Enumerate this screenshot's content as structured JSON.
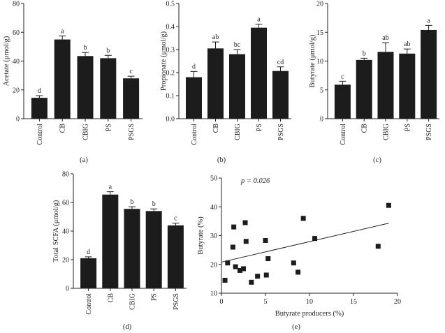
{
  "chart_data": [
    {
      "panel_label": "(a)",
      "type": "bar",
      "ylabel": "Acetate (μmol/g)",
      "ylim": [
        0,
        80
      ],
      "yticks": [
        "0",
        "20",
        "40",
        "60",
        "80"
      ],
      "categories": [
        "Control",
        "CB",
        "CBIG",
        "PS",
        "PSGS"
      ],
      "values": [
        14.5,
        55,
        43.5,
        42,
        28
      ],
      "errors": [
        1.5,
        2.5,
        2.5,
        2,
        1.5
      ],
      "sig_letters": [
        "d",
        "a",
        "b",
        "b",
        "c"
      ]
    },
    {
      "panel_label": "(b)",
      "type": "bar",
      "ylabel": "Propionate (μmol/g)",
      "ylim": [
        0,
        0.5
      ],
      "yticks": [
        "0.0",
        "0.1",
        "0.2",
        "0.3",
        "0.4",
        "0.5"
      ],
      "categories": [
        "Control",
        "CB",
        "CBIG",
        "PS",
        "PSGS"
      ],
      "values": [
        0.18,
        0.305,
        0.28,
        0.395,
        0.207
      ],
      "errors": [
        0.025,
        0.028,
        0.02,
        0.015,
        0.018
      ],
      "sig_letters": [
        "d",
        "ab",
        "bc",
        "a",
        "cd"
      ]
    },
    {
      "panel_label": "(c)",
      "type": "bar",
      "ylabel": "Butyrate (μmol/g)",
      "ylim": [
        0,
        20
      ],
      "yticks": [
        "0",
        "5",
        "10",
        "15",
        "20"
      ],
      "categories": [
        "Control",
        "CB",
        "CBIG",
        "PS",
        "PSGS"
      ],
      "values": [
        5.9,
        10.2,
        11.6,
        11.3,
        15.4
      ],
      "errors": [
        0.6,
        0.3,
        1.6,
        0.8,
        0.8
      ],
      "sig_letters": [
        "c",
        "b",
        "ab",
        "ab",
        "a"
      ]
    },
    {
      "panel_label": "(d)",
      "type": "bar",
      "ylabel": "Total SCFA (μmol/g)",
      "ylim": [
        0,
        80
      ],
      "yticks": [
        "0",
        "20",
        "40",
        "60",
        "80"
      ],
      "categories": [
        "Control",
        "CB",
        "CBIG",
        "PS",
        "PSGS"
      ],
      "values": [
        21,
        65.5,
        55.5,
        54,
        44
      ],
      "errors": [
        1,
        2,
        1.5,
        1.5,
        1.5
      ],
      "sig_letters": [
        "d",
        "a",
        "b",
        "b",
        "c"
      ]
    },
    {
      "panel_label": "(e)",
      "type": "scatter",
      "annotation": "p = 0.026",
      "xlabel": "Butyrate producers (%)",
      "ylabel": "Butyrate (%)",
      "xlim": [
        0,
        20
      ],
      "ylim": [
        10,
        50
      ],
      "xticks": [
        "0",
        "5",
        "10",
        "15",
        "20"
      ],
      "yticks": [
        "10",
        "20",
        "30",
        "40",
        "50"
      ],
      "x": [
        0.4,
        0.7,
        1.3,
        1.4,
        1.6,
        2.1,
        2.5,
        2.7,
        2.8,
        3.4,
        4.1,
        5.0,
        5.1,
        5.3,
        8.2,
        8.7,
        9.3,
        10.6,
        17.8,
        19.0
      ],
      "y": [
        14.5,
        20.5,
        26,
        33,
        19.2,
        17.9,
        18.5,
        34.5,
        28,
        13.8,
        15.9,
        28.3,
        16.3,
        22,
        20.5,
        17.3,
        36,
        29,
        26.3,
        40.5
      ],
      "trendline": {
        "x": [
          0,
          19
        ],
        "y": [
          20.8,
          34.3
        ]
      }
    }
  ]
}
